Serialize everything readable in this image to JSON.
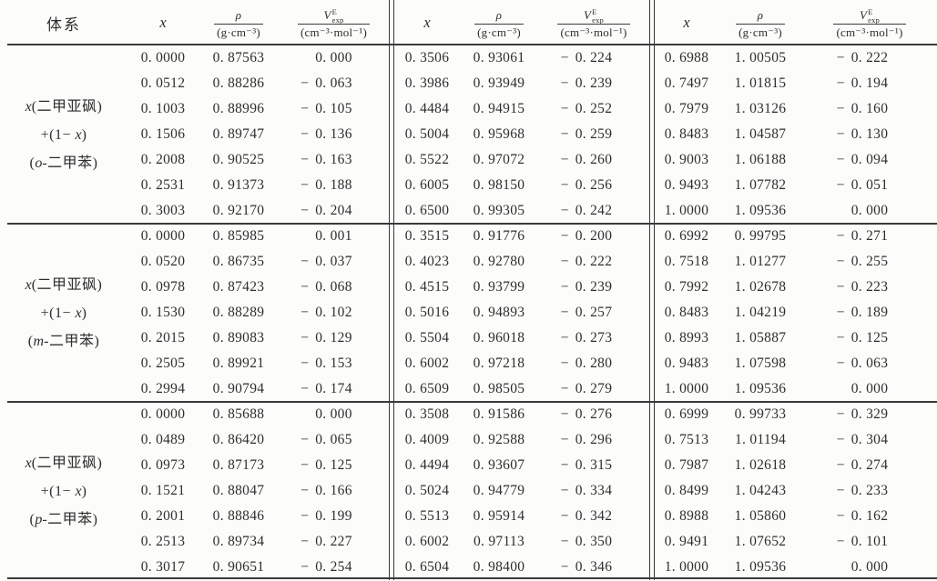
{
  "header": {
    "system": "体系",
    "x": "x",
    "rho": {
      "num": "ρ",
      "den": "(g·cm⁻³)"
    },
    "vexp": {
      "base": "V",
      "sup": "E",
      "sub": "exp",
      "den": "(cm⁻³·mol⁻¹)"
    }
  },
  "blocks": [
    {
      "system_lines": [
        [
          {
            "t": "x",
            "i": true
          },
          {
            "t": "(二甲亚砜)"
          }
        ],
        [
          {
            "t": "+(1− "
          },
          {
            "t": "x",
            "i": true
          },
          {
            "t": ")"
          }
        ],
        [
          {
            "t": "("
          },
          {
            "t": "o",
            "i": true
          },
          {
            "t": "-二甲苯)"
          }
        ]
      ],
      "groups": [
        {
          "rows": [
            [
              "0. 0000",
              "0. 87563",
              "0. 000"
            ],
            [
              "0. 0512",
              "0. 88286",
              "−0. 063"
            ],
            [
              "0. 1003",
              "0. 88996",
              "−0. 105"
            ],
            [
              "0. 1506",
              "0. 89747",
              "−0. 136"
            ],
            [
              "0. 2008",
              "0. 90525",
              "−0. 163"
            ],
            [
              "0. 2531",
              "0. 91373",
              "−0. 188"
            ],
            [
              "0. 3003",
              "0. 92170",
              "−0. 204"
            ]
          ]
        },
        {
          "rows": [
            [
              "0. 3506",
              "0. 93061",
              "−0. 224"
            ],
            [
              "0. 3986",
              "0. 93949",
              "−0. 239"
            ],
            [
              "0. 4484",
              "0. 94915",
              "−0. 252"
            ],
            [
              "0. 5004",
              "0. 95968",
              "−0. 259"
            ],
            [
              "0. 5522",
              "0. 97072",
              "−0. 260"
            ],
            [
              "0. 6005",
              "0. 98150",
              "−0. 256"
            ],
            [
              "0. 6500",
              "0. 99305",
              "−0. 242"
            ]
          ]
        },
        {
          "rows": [
            [
              "0. 6988",
              "1. 00505",
              "−0. 222"
            ],
            [
              "0. 7497",
              "1. 01815",
              "−0. 194"
            ],
            [
              "0. 7979",
              "1. 03126",
              "−0. 160"
            ],
            [
              "0. 8483",
              "1. 04587",
              "−0. 130"
            ],
            [
              "0. 9003",
              "1. 06188",
              "−0. 094"
            ],
            [
              "0. 9493",
              "1. 07782",
              "−0. 051"
            ],
            [
              "1. 0000",
              "1. 09536",
              "0. 000"
            ]
          ]
        }
      ]
    },
    {
      "system_lines": [
        [
          {
            "t": "x",
            "i": true
          },
          {
            "t": "(二甲亚砜)"
          }
        ],
        [
          {
            "t": "+(1− "
          },
          {
            "t": "x",
            "i": true
          },
          {
            "t": ")"
          }
        ],
        [
          {
            "t": "("
          },
          {
            "t": "m",
            "i": true
          },
          {
            "t": "-二甲苯)"
          }
        ]
      ],
      "groups": [
        {
          "rows": [
            [
              "0. 0000",
              "0. 85985",
              "0. 001"
            ],
            [
              "0. 0520",
              "0. 86735",
              "−0. 037"
            ],
            [
              "0. 0978",
              "0. 87423",
              "−0. 068"
            ],
            [
              "0. 1530",
              "0. 88289",
              "−0. 102"
            ],
            [
              "0. 2015",
              "0. 89083",
              "−0. 129"
            ],
            [
              "0. 2505",
              "0. 89921",
              "−0. 153"
            ],
            [
              "0. 2994",
              "0. 90794",
              "−0. 174"
            ]
          ]
        },
        {
          "rows": [
            [
              "0. 3515",
              "0. 91776",
              "−0. 200"
            ],
            [
              "0. 4023",
              "0. 92780",
              "−0. 222"
            ],
            [
              "0. 4515",
              "0. 93799",
              "−0. 239"
            ],
            [
              "0. 5016",
              "0. 94893",
              "−0. 257"
            ],
            [
              "0. 5504",
              "0. 96018",
              "−0. 273"
            ],
            [
              "0. 6002",
              "0. 97218",
              "−0. 280"
            ],
            [
              "0. 6509",
              "0. 98505",
              "−0. 279"
            ]
          ]
        },
        {
          "rows": [
            [
              "0. 6992",
              "0. 99795",
              "−0. 271"
            ],
            [
              "0. 7518",
              "1. 01277",
              "−0. 255"
            ],
            [
              "0. 7992",
              "1. 02678",
              "−0. 223"
            ],
            [
              "0. 8483",
              "1. 04219",
              "−0. 189"
            ],
            [
              "0. 8993",
              "1. 05887",
              "−0. 125"
            ],
            [
              "0. 9483",
              "1. 07598",
              "−0. 063"
            ],
            [
              "1. 0000",
              "1. 09536",
              "0. 000"
            ]
          ]
        }
      ]
    },
    {
      "system_lines": [
        [
          {
            "t": "x",
            "i": true
          },
          {
            "t": "(二甲亚砜)"
          }
        ],
        [
          {
            "t": "+(1− "
          },
          {
            "t": "x",
            "i": true
          },
          {
            "t": ")"
          }
        ],
        [
          {
            "t": "("
          },
          {
            "t": "p",
            "i": true
          },
          {
            "t": "-二甲苯)"
          }
        ]
      ],
      "groups": [
        {
          "rows": [
            [
              "0. 0000",
              "0. 85688",
              "0. 000"
            ],
            [
              "0. 0489",
              "0. 86420",
              "−0. 065"
            ],
            [
              "0. 0973",
              "0. 87173",
              "−0. 125"
            ],
            [
              "0. 1521",
              "0. 88047",
              "−0. 166"
            ],
            [
              "0. 2001",
              "0. 88846",
              "−0. 199"
            ],
            [
              "0. 2513",
              "0. 89734",
              "−0. 227"
            ],
            [
              "0. 3017",
              "0. 90651",
              "−0. 254"
            ]
          ]
        },
        {
          "rows": [
            [
              "0. 3508",
              "0. 91586",
              "−0. 276"
            ],
            [
              "0. 4009",
              "0. 92588",
              "−0. 296"
            ],
            [
              "0. 4494",
              "0. 93607",
              "−0. 315"
            ],
            [
              "0. 5024",
              "0. 94779",
              "−0. 334"
            ],
            [
              "0. 5513",
              "0. 95914",
              "−0. 342"
            ],
            [
              "0. 6002",
              "0. 97113",
              "−0. 350"
            ],
            [
              "0. 6504",
              "0. 98400",
              "−0. 346"
            ]
          ]
        },
        {
          "rows": [
            [
              "0. 6999",
              "0. 99733",
              "−0. 329"
            ],
            [
              "0. 7513",
              "1. 01194",
              "−0. 304"
            ],
            [
              "0. 7987",
              "1. 02618",
              "−0. 274"
            ],
            [
              "0. 8499",
              "1. 04243",
              "−0. 233"
            ],
            [
              "0. 8988",
              "1. 05860",
              "−0. 162"
            ],
            [
              "0. 9491",
              "1. 07652",
              "−0. 101"
            ],
            [
              "1. 0000",
              "1. 09536",
              "0. 000"
            ]
          ]
        }
      ]
    }
  ]
}
